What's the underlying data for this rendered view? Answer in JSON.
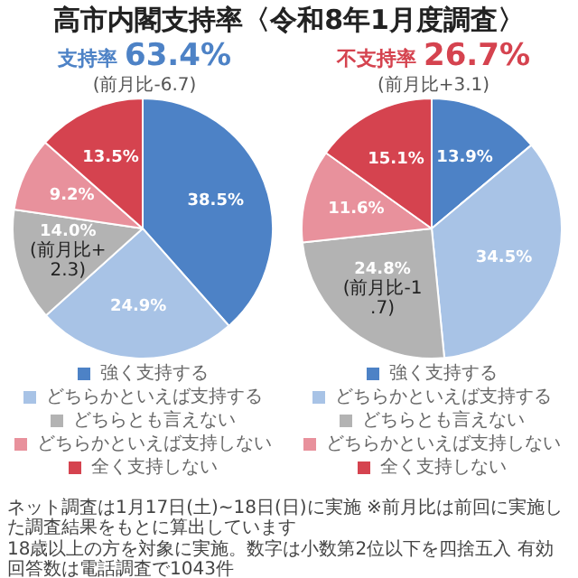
{
  "chart_data": [
    {
      "type": "other",
      "title": "高市内閣支持率〈令和8年1月度調査〉"
    },
    {
      "type": "pie",
      "title": "支持率",
      "subtitle": "63.4%",
      "legend": "bottom",
      "categories": [
        "強く支持する",
        "どちらかといえば支持する",
        "どちらとも言えない",
        "どちらかといえば支持しない",
        "全く支持しない"
      ],
      "values": [
        38.5,
        24.9,
        14.0,
        9.2,
        13.5
      ],
      "value_labels": [
        "38.5%",
        "24.9%",
        "14.0%",
        "9.2%",
        "13.5%"
      ],
      "colors": [
        "#4d82c6",
        "#a8c3e6",
        "#b3b3b3",
        "#e8919c",
        "#d5434f"
      ],
      "annotations": [
        "(前月比-6.7)",
        {
          "text": "(前月比+2.3)",
          "x": "どちらとも言えない"
        }
      ]
    },
    {
      "type": "pie",
      "title": "不支持率",
      "subtitle": "26.7%",
      "legend": "bottom",
      "categories": [
        "強く支持する",
        "どちらかといえば支持する",
        "どちらとも言えない",
        "どちらかといえば支持しない",
        "全く支持しない"
      ],
      "values": [
        13.9,
        34.5,
        24.8,
        11.6,
        15.1
      ],
      "value_labels": [
        "13.9%",
        "34.5%",
        "24.8%",
        "11.6%",
        "15.1%"
      ],
      "colors": [
        "#4d82c6",
        "#a8c3e6",
        "#b3b3b3",
        "#e8919c",
        "#d5434f"
      ],
      "annotations": [
        "(前月比+3.1)",
        {
          "text": "(前月比-1.7)",
          "x": "どちらとも言えない"
        }
      ]
    },
    {
      "type": "other",
      "annotations": [
        "ネット調査は1月17日(土)~18日(日)に実施 ※前月比は前回に実施した調査結果をもとに算出しています",
        "18歳以上の方を対象に実施。数字は小数第2位以下を四捨五入 有効回答数は電話調査で1043件"
      ]
    }
  ]
}
